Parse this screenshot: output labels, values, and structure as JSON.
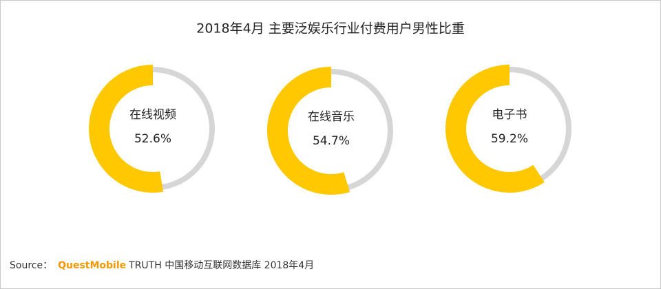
{
  "chart_data": {
    "type": "donut",
    "title": "2018年4月 主要泛娱乐行业付费用户男性比重",
    "categories": [
      "在线视频",
      "在线音乐",
      "电子书"
    ],
    "values": [
      52.6,
      54.7,
      59.2
    ],
    "value_labels": [
      "52.6%",
      "54.7%",
      "59.2%"
    ],
    "color": "#ffc800",
    "track_color": "#d6d6d6",
    "source_label": "Source：",
    "source_brand": "QuestMobile",
    "source_text": "TRUTH 中国移动互联网数据库 2018年4月"
  }
}
